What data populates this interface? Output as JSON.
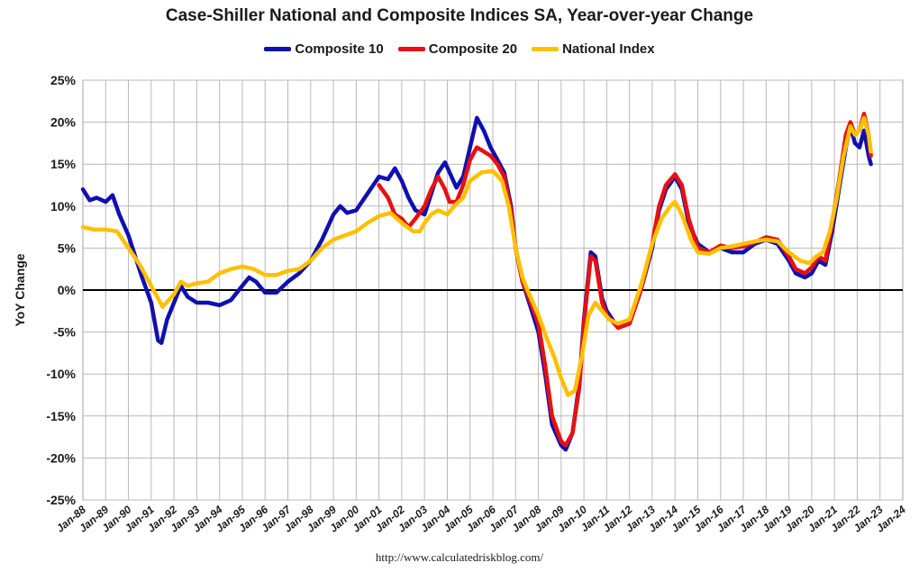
{
  "chart_data": {
    "type": "line",
    "title": "Case-Shiller National and Composite Indices SA, Year-over-year Change",
    "ylabel": "YoY Change",
    "xlabel": "",
    "ylim": [
      -25,
      25
    ],
    "xlim": [
      1988,
      2024
    ],
    "y_ticks": [
      "25%",
      "20%",
      "15%",
      "10%",
      "5%",
      "0%",
      "-5%",
      "-10%",
      "-15%",
      "-20%",
      "-25%"
    ],
    "x_ticks": [
      "Jan-88",
      "Jan-89",
      "Jan-90",
      "Jan-91",
      "Jan-92",
      "Jan-93",
      "Jan-94",
      "Jan-95",
      "Jan-96",
      "Jan-97",
      "Jan-98",
      "Jan-99",
      "Jan-00",
      "Jan-01",
      "Jan-02",
      "Jan-03",
      "Jan-04",
      "Jan-05",
      "Jan-06",
      "Jan-07",
      "Jan-08",
      "Jan-09",
      "Jan-10",
      "Jan-11",
      "Jan-12",
      "Jan-13",
      "Jan-14",
      "Jan-15",
      "Jan-16",
      "Jan-17",
      "Jan-18",
      "Jan-19",
      "Jan-20",
      "Jan-21",
      "Jan-22",
      "Jan-23",
      "Jan-24"
    ],
    "grid": true,
    "legend_position": "top",
    "series": [
      {
        "name": "Composite 10",
        "color": "#1010b0",
        "points": [
          [
            1988.0,
            12.0
          ],
          [
            1988.3,
            10.7
          ],
          [
            1988.6,
            11.0
          ],
          [
            1989.0,
            10.5
          ],
          [
            1989.3,
            11.3
          ],
          [
            1989.6,
            9.0
          ],
          [
            1990.0,
            6.5
          ],
          [
            1990.3,
            4.0
          ],
          [
            1990.6,
            1.5
          ],
          [
            1991.0,
            -1.5
          ],
          [
            1991.3,
            -6.0
          ],
          [
            1991.45,
            -6.3
          ],
          [
            1991.7,
            -3.5
          ],
          [
            1992.0,
            -1.5
          ],
          [
            1992.3,
            0.5
          ],
          [
            1992.6,
            -0.8
          ],
          [
            1993.0,
            -1.5
          ],
          [
            1993.5,
            -1.5
          ],
          [
            1994.0,
            -1.8
          ],
          [
            1994.5,
            -1.2
          ],
          [
            1995.0,
            0.5
          ],
          [
            1995.3,
            1.5
          ],
          [
            1995.6,
            1.0
          ],
          [
            1996.0,
            -0.3
          ],
          [
            1996.5,
            -0.3
          ],
          [
            1997.0,
            1.0
          ],
          [
            1997.5,
            2.0
          ],
          [
            1998.0,
            3.5
          ],
          [
            1998.5,
            6.0
          ],
          [
            1999.0,
            9.0
          ],
          [
            1999.3,
            10.0
          ],
          [
            1999.6,
            9.2
          ],
          [
            2000.0,
            9.5
          ],
          [
            2000.5,
            11.5
          ],
          [
            2001.0,
            13.5
          ],
          [
            2001.4,
            13.2
          ],
          [
            2001.7,
            14.5
          ],
          [
            2002.0,
            13.0
          ],
          [
            2002.3,
            11.0
          ],
          [
            2002.6,
            9.5
          ],
          [
            2003.0,
            9.0
          ],
          [
            2003.3,
            11.5
          ],
          [
            2003.6,
            14.0
          ],
          [
            2003.9,
            15.2
          ],
          [
            2004.1,
            14.0
          ],
          [
            2004.4,
            12.2
          ],
          [
            2004.7,
            13.5
          ],
          [
            2005.0,
            17.0
          ],
          [
            2005.3,
            20.5
          ],
          [
            2005.6,
            19.0
          ],
          [
            2005.9,
            17.0
          ],
          [
            2006.2,
            15.5
          ],
          [
            2006.5,
            14.0
          ],
          [
            2006.8,
            10.0
          ],
          [
            2007.0,
            5.0
          ],
          [
            2007.3,
            1.0
          ],
          [
            2007.6,
            -1.5
          ],
          [
            2008.0,
            -5.0
          ],
          [
            2008.3,
            -10.0
          ],
          [
            2008.6,
            -16.0
          ],
          [
            2009.0,
            -18.5
          ],
          [
            2009.2,
            -19.0
          ],
          [
            2009.5,
            -17.0
          ],
          [
            2009.8,
            -11.0
          ],
          [
            2010.0,
            -3.5
          ],
          [
            2010.3,
            4.5
          ],
          [
            2010.5,
            4.0
          ],
          [
            2010.8,
            -1.0
          ],
          [
            2011.0,
            -2.5
          ],
          [
            2011.5,
            -4.5
          ],
          [
            2012.0,
            -4.0
          ],
          [
            2012.5,
            0.0
          ],
          [
            2013.0,
            5.0
          ],
          [
            2013.3,
            9.5
          ],
          [
            2013.6,
            12.0
          ],
          [
            2014.0,
            13.5
          ],
          [
            2014.3,
            12.0
          ],
          [
            2014.6,
            8.0
          ],
          [
            2015.0,
            5.5
          ],
          [
            2015.5,
            4.5
          ],
          [
            2016.0,
            5.0
          ],
          [
            2016.5,
            4.5
          ],
          [
            2017.0,
            4.5
          ],
          [
            2017.5,
            5.5
          ],
          [
            2018.0,
            6.0
          ],
          [
            2018.5,
            5.5
          ],
          [
            2019.0,
            3.5
          ],
          [
            2019.3,
            2.0
          ],
          [
            2019.7,
            1.5
          ],
          [
            2020.0,
            2.0
          ],
          [
            2020.3,
            3.5
          ],
          [
            2020.6,
            3.0
          ],
          [
            2020.9,
            7.0
          ],
          [
            2021.2,
            12.0
          ],
          [
            2021.5,
            17.0
          ],
          [
            2021.7,
            19.5
          ],
          [
            2021.9,
            17.5
          ],
          [
            2022.1,
            17.0
          ],
          [
            2022.3,
            19.0
          ],
          [
            2022.5,
            16.0
          ],
          [
            2022.6,
            15.0
          ]
        ]
      },
      {
        "name": "Composite 20",
        "color": "#e81010",
        "points": [
          [
            2001.0,
            12.5
          ],
          [
            2001.4,
            11.0
          ],
          [
            2001.7,
            9.0
          ],
          [
            2002.0,
            8.5
          ],
          [
            2002.3,
            7.5
          ],
          [
            2002.6,
            8.5
          ],
          [
            2003.0,
            10.0
          ],
          [
            2003.3,
            12.0
          ],
          [
            2003.6,
            13.5
          ],
          [
            2003.9,
            12.0
          ],
          [
            2004.1,
            10.5
          ],
          [
            2004.4,
            10.5
          ],
          [
            2004.7,
            12.5
          ],
          [
            2005.0,
            15.5
          ],
          [
            2005.3,
            17.0
          ],
          [
            2005.6,
            16.5
          ],
          [
            2005.9,
            16.0
          ],
          [
            2006.2,
            15.0
          ],
          [
            2006.5,
            13.5
          ],
          [
            2006.8,
            9.5
          ],
          [
            2007.0,
            5.0
          ],
          [
            2007.3,
            1.0
          ],
          [
            2007.6,
            -1.0
          ],
          [
            2008.0,
            -4.0
          ],
          [
            2008.3,
            -9.0
          ],
          [
            2008.6,
            -15.0
          ],
          [
            2009.0,
            -18.0
          ],
          [
            2009.2,
            -18.5
          ],
          [
            2009.5,
            -17.0
          ],
          [
            2009.8,
            -11.5
          ],
          [
            2010.0,
            -4.0
          ],
          [
            2010.3,
            4.0
          ],
          [
            2010.5,
            3.5
          ],
          [
            2010.8,
            -1.5
          ],
          [
            2011.0,
            -3.0
          ],
          [
            2011.5,
            -4.5
          ],
          [
            2012.0,
            -4.0
          ],
          [
            2012.5,
            0.0
          ],
          [
            2013.0,
            5.5
          ],
          [
            2013.3,
            10.0
          ],
          [
            2013.6,
            12.5
          ],
          [
            2014.0,
            13.8
          ],
          [
            2014.3,
            12.5
          ],
          [
            2014.6,
            8.5
          ],
          [
            2015.0,
            5.0
          ],
          [
            2015.5,
            4.5
          ],
          [
            2016.0,
            5.3
          ],
          [
            2016.5,
            5.0
          ],
          [
            2017.0,
            5.2
          ],
          [
            2017.5,
            5.7
          ],
          [
            2018.0,
            6.3
          ],
          [
            2018.5,
            6.0
          ],
          [
            2019.0,
            4.0
          ],
          [
            2019.3,
            2.5
          ],
          [
            2019.7,
            2.0
          ],
          [
            2020.0,
            2.7
          ],
          [
            2020.3,
            4.0
          ],
          [
            2020.6,
            3.5
          ],
          [
            2020.9,
            8.0
          ],
          [
            2021.2,
            13.0
          ],
          [
            2021.5,
            18.5
          ],
          [
            2021.7,
            20.0
          ],
          [
            2021.9,
            18.5
          ],
          [
            2022.1,
            19.0
          ],
          [
            2022.3,
            21.0
          ],
          [
            2022.5,
            18.5
          ],
          [
            2022.6,
            16.0
          ]
        ]
      },
      {
        "name": "National Index",
        "color": "#ffc000",
        "points": [
          [
            1988.0,
            7.5
          ],
          [
            1988.5,
            7.2
          ],
          [
            1989.0,
            7.2
          ],
          [
            1989.5,
            7.0
          ],
          [
            1990.0,
            5.0
          ],
          [
            1990.5,
            3.0
          ],
          [
            1991.0,
            0.5
          ],
          [
            1991.5,
            -2.0
          ],
          [
            1992.0,
            -0.5
          ],
          [
            1992.3,
            1.0
          ],
          [
            1992.6,
            0.5
          ],
          [
            1993.0,
            0.8
          ],
          [
            1993.5,
            1.0
          ],
          [
            1994.0,
            2.0
          ],
          [
            1994.5,
            2.5
          ],
          [
            1995.0,
            2.8
          ],
          [
            1995.5,
            2.5
          ],
          [
            1996.0,
            1.8
          ],
          [
            1996.5,
            1.8
          ],
          [
            1997.0,
            2.3
          ],
          [
            1997.5,
            2.5
          ],
          [
            1998.0,
            3.5
          ],
          [
            1998.5,
            5.0
          ],
          [
            1999.0,
            6.0
          ],
          [
            1999.5,
            6.5
          ],
          [
            2000.0,
            7.0
          ],
          [
            2000.5,
            8.0
          ],
          [
            2001.0,
            8.8
          ],
          [
            2001.5,
            9.2
          ],
          [
            2002.0,
            8.0
          ],
          [
            2002.5,
            7.0
          ],
          [
            2002.8,
            7.0
          ],
          [
            2003.0,
            8.0
          ],
          [
            2003.3,
            9.0
          ],
          [
            2003.6,
            9.5
          ],
          [
            2004.0,
            9.0
          ],
          [
            2004.3,
            10.0
          ],
          [
            2004.7,
            11.0
          ],
          [
            2005.0,
            13.0
          ],
          [
            2005.5,
            14.0
          ],
          [
            2006.0,
            14.2
          ],
          [
            2006.4,
            13.0
          ],
          [
            2006.7,
            10.0
          ],
          [
            2007.0,
            5.0
          ],
          [
            2007.3,
            1.5
          ],
          [
            2007.6,
            -0.5
          ],
          [
            2008.0,
            -3.0
          ],
          [
            2008.4,
            -6.0
          ],
          [
            2008.7,
            -8.0
          ],
          [
            2009.0,
            -10.5
          ],
          [
            2009.3,
            -12.5
          ],
          [
            2009.6,
            -12.0
          ],
          [
            2009.9,
            -8.0
          ],
          [
            2010.2,
            -3.0
          ],
          [
            2010.5,
            -1.5
          ],
          [
            2010.8,
            -2.5
          ],
          [
            2011.1,
            -3.5
          ],
          [
            2011.5,
            -4.0
          ],
          [
            2012.0,
            -3.5
          ],
          [
            2012.5,
            0.5
          ],
          [
            2013.0,
            5.5
          ],
          [
            2013.4,
            8.5
          ],
          [
            2013.8,
            10.0
          ],
          [
            2014.0,
            10.5
          ],
          [
            2014.3,
            9.0
          ],
          [
            2014.7,
            6.0
          ],
          [
            2015.0,
            4.5
          ],
          [
            2015.5,
            4.3
          ],
          [
            2016.0,
            5.0
          ],
          [
            2016.5,
            5.2
          ],
          [
            2017.0,
            5.5
          ],
          [
            2017.5,
            5.8
          ],
          [
            2018.0,
            6.0
          ],
          [
            2018.5,
            5.8
          ],
          [
            2019.0,
            4.5
          ],
          [
            2019.5,
            3.5
          ],
          [
            2019.9,
            3.2
          ],
          [
            2020.2,
            4.0
          ],
          [
            2020.5,
            4.5
          ],
          [
            2020.8,
            7.0
          ],
          [
            2021.1,
            11.0
          ],
          [
            2021.4,
            16.0
          ],
          [
            2021.7,
            19.5
          ],
          [
            2021.9,
            18.5
          ],
          [
            2022.1,
            19.0
          ],
          [
            2022.3,
            20.5
          ],
          [
            2022.5,
            18.5
          ],
          [
            2022.6,
            16.5
          ]
        ]
      }
    ]
  },
  "source": "http://www.calculatedriskblog.com/"
}
